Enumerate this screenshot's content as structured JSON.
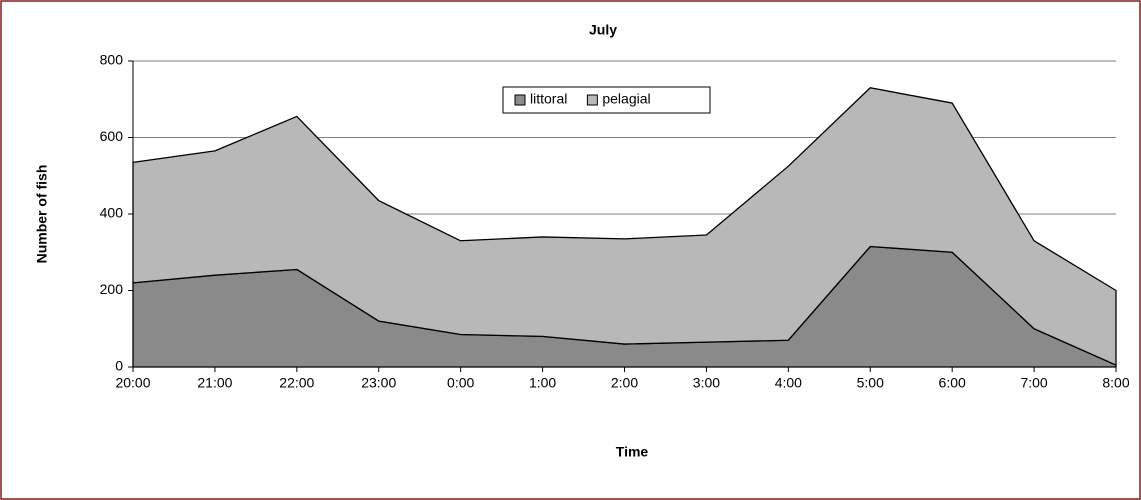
{
  "chart_data": {
    "type": "stacked-area",
    "title": "July",
    "x_label": "Time",
    "y_label": "Number of fish",
    "categories": [
      "20:00",
      "21:00",
      "22:00",
      "23:00",
      "0:00",
      "1:00",
      "2:00",
      "3:00",
      "4:00",
      "5:00",
      "6:00",
      "7:00",
      "8:00"
    ],
    "series": [
      {
        "name": "littoral",
        "color": "#8a8a8a",
        "values": [
          220,
          240,
          255,
          120,
          85,
          80,
          60,
          65,
          70,
          315,
          300,
          100,
          5
        ]
      },
      {
        "name": "pelagial",
        "color": "#b8b8b8",
        "values": [
          315,
          325,
          400,
          315,
          245,
          260,
          275,
          280,
          455,
          415,
          390,
          230,
          195
        ]
      }
    ],
    "ylim": [
      0,
      800
    ],
    "yticks": [
      0,
      200,
      400,
      600,
      800
    ],
    "grid": true,
    "legend": "top"
  }
}
